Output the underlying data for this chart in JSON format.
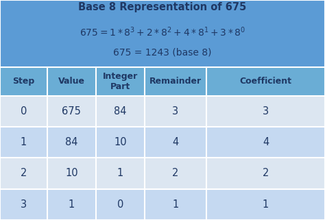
{
  "title_line1": "Base 8 Representation of 675",
  "title_line3": "675 = 1243 (base 8)",
  "header": [
    "Step",
    "Value",
    "Integer\nPart",
    "Remainder",
    "Coefficient"
  ],
  "rows": [
    [
      "0",
      "675",
      "84",
      "3",
      "3"
    ],
    [
      "1",
      "84",
      "10",
      "4",
      "4"
    ],
    [
      "2",
      "10",
      "1",
      "2",
      "2"
    ],
    [
      "3",
      "1",
      "0",
      "1",
      "1"
    ]
  ],
  "header_bg": "#6aadd5",
  "title_bg": "#5b9bd5",
  "row_bg_light": "#dce6f1",
  "row_bg_mid": "#c5d9f1",
  "text_dark": "#1f3864",
  "figwidth": 4.74,
  "figheight": 3.21,
  "dpi": 100
}
